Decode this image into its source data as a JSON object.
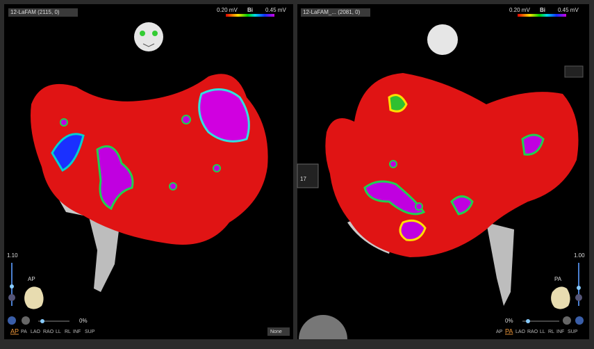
{
  "left_panel": {
    "map_name": "12-LaFAM (2115, 0)",
    "scale_min": "0.20 mV",
    "scale_label": "Bi",
    "scale_max": "0.45 mV",
    "zoom": "1.10",
    "orientation": "AP",
    "opacity": "0%",
    "views": [
      "AP",
      "PA",
      "LAO",
      "RAO",
      "LL",
      "RL",
      "INF",
      "SUP"
    ],
    "dropdown": "None"
  },
  "right_panel": {
    "map_name": "12-LaFAM_... (2081, 0)",
    "scale_min": "0.20 mV",
    "scale_label": "Bi",
    "scale_max": "0.45 mV",
    "zoom": "1.00",
    "orientation": "PA",
    "opacity": "0%",
    "views": [
      "AP",
      "PA",
      "LAO",
      "RAO",
      "LL",
      "RL",
      "INF",
      "SUP"
    ]
  },
  "center_tool": {
    "counter": "17"
  }
}
